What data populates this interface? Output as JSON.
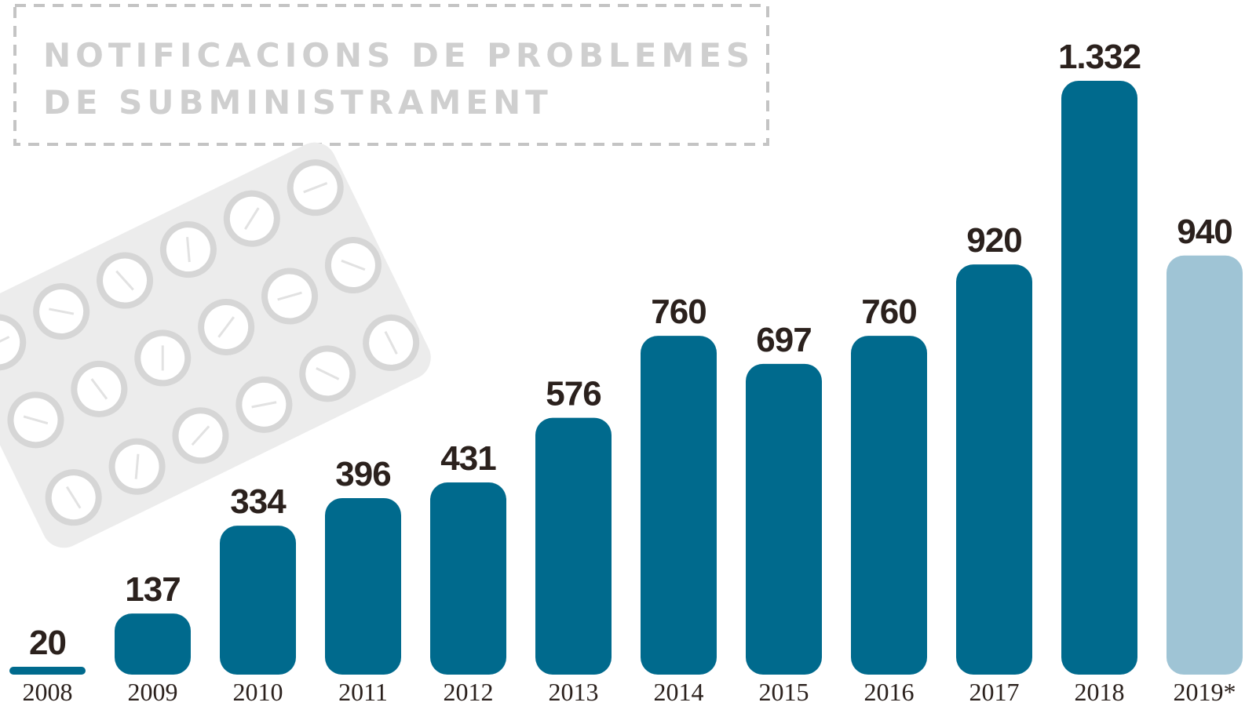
{
  "title": {
    "line1": "NOTIFICACIONS DE PROBLEMES",
    "line2": "DE SUBMINISTRAMENT"
  },
  "decoration": {
    "illustration": "pill-blister-pack",
    "blister_color": "#ececec",
    "pill_ring_color": "#d6d6d6"
  },
  "chart_data": {
    "type": "bar",
    "title": "NOTIFICACIONS DE PROBLEMES DE SUBMINISTRAMENT",
    "xlabel": "",
    "ylabel": "",
    "ylim": [
      0,
      1332
    ],
    "grid": false,
    "categories": [
      "2008",
      "2009",
      "2010",
      "2011",
      "2012",
      "2013",
      "2014",
      "2015",
      "2016",
      "2017",
      "2018",
      "2019*"
    ],
    "values": [
      20,
      137,
      334,
      396,
      431,
      576,
      760,
      697,
      760,
      920,
      1332,
      940
    ],
    "value_labels": [
      "20",
      "137",
      "334",
      "396",
      "431",
      "576",
      "760",
      "697",
      "760",
      "920",
      "1.332",
      "940"
    ],
    "colors": {
      "bar": "#006a8d",
      "bar_partial_year": "#9fc4d5",
      "label": "#2b211d",
      "label_partial_year": "#8e8e8e"
    },
    "partial_year_index": 11
  }
}
